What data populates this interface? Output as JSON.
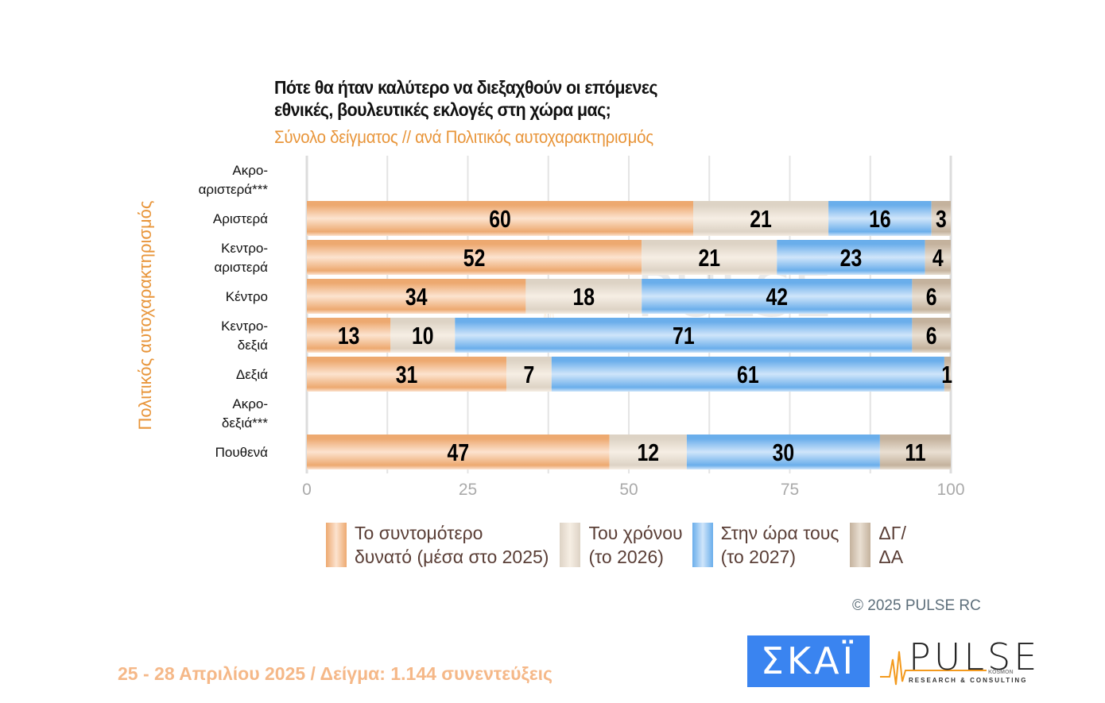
{
  "header": {
    "title_line1": "Πότε θα ήταν καλύτερο να διεξαχθούν οι επόμενες",
    "title_line2": "εθνικές, βουλευτικές εκλογές στη χώρα μας;",
    "subtitle": "Σύνολο δείγματος // ανά Πολιτικός αυτοχαρακτηρισμός"
  },
  "chart_data": {
    "type": "bar",
    "orientation": "horizontal",
    "stacked": true,
    "title": "Πότε θα ήταν καλύτερο να διεξαχθούν οι επόμενες εθνικές, βουλευτικές εκλογές στη χώρα μας;",
    "subtitle": "Σύνολο δείγματος // ανά Πολιτικός αυτοχαρακτηρισμός",
    "ylabel": "Πολιτικός αυτοχαρακτηρισμός",
    "xlabel": "",
    "xlim": [
      0,
      100
    ],
    "xticks": [
      0,
      25,
      50,
      75,
      100
    ],
    "grid": true,
    "legend_position": "bottom",
    "categories": [
      [
        "Ακρο-",
        "αριστερά***"
      ],
      [
        "Αριστερά"
      ],
      [
        "Κεντρο-",
        "αριστερά"
      ],
      [
        "Κέντρο"
      ],
      [
        "Κεντρο-",
        "δεξιά"
      ],
      [
        "Δεξιά"
      ],
      [
        "Ακρο-",
        "δεξιά***"
      ],
      [
        "Πουθενά"
      ]
    ],
    "series": [
      {
        "name": "Το συντομότερο δυνατό (μέσα στο 2025)",
        "color": "#F2B27A",
        "values": [
          null,
          60,
          52,
          34,
          13,
          31,
          null,
          47
        ]
      },
      {
        "name": "Του χρόνου (το 2026)",
        "color": "#E8DFD2",
        "values": [
          null,
          21,
          21,
          18,
          10,
          7,
          null,
          12
        ]
      },
      {
        "name": "Στην ώρα τους (το 2027)",
        "color": "#7DB8EE",
        "values": [
          null,
          16,
          23,
          42,
          71,
          61,
          null,
          30
        ]
      },
      {
        "name": "ΔΓ/ΔΑ",
        "color": "#CDBCA8",
        "values": [
          null,
          3,
          4,
          6,
          6,
          1,
          null,
          11
        ]
      }
    ]
  },
  "legend": [
    {
      "label": "Το συντομότερο\nδυνατό (μέσα στο 2025)",
      "color_dark": "#EDA970",
      "color_light": "#FCE3CF"
    },
    {
      "label": "Του χρόνου\n(το 2026)",
      "color_dark": "#DDD3C5",
      "color_light": "#F6EEE4"
    },
    {
      "label": "Στην ώρα τους\n(το 2027)",
      "color_dark": "#6AAEEB",
      "color_light": "#CFE5FA"
    },
    {
      "label": "ΔΓ/\nΔΑ",
      "color_dark": "#C4B29D",
      "color_light": "#E9DFD2"
    }
  ],
  "watermark": {
    "word": "PULSE",
    "sub": "RESEARCH & CONSULTING"
  },
  "copyright": "©  2025  PULSE RC",
  "footer": "25 - 28 Απριλίου 2025  /  Δείγμα:  1.144 συνεντεύξεις",
  "logos": {
    "skai": "ΣΚΑΪ",
    "pulse": "PULSE",
    "pulse_sub": "RESEARCH & CONSULTING",
    "pulse_kosmon": "KOSMON"
  }
}
